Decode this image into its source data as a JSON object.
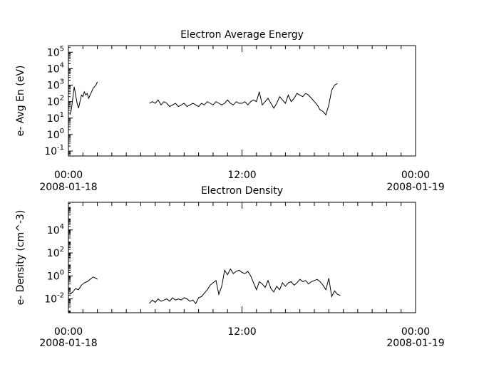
{
  "chart_data": [
    {
      "type": "line",
      "title": "Electron Average Energy",
      "ylabel": "e- Avg En (eV)",
      "xlabel": "",
      "yscale": "log",
      "ylim_log10": [
        -1.3,
        5.4
      ],
      "xlim_hours": [
        0,
        24
      ],
      "xticks": [
        {
          "hours": 0,
          "time": "00:00",
          "date": "2008-01-18"
        },
        {
          "hours": 12,
          "time": "12:00",
          "date": ""
        },
        {
          "hours": 24,
          "time": "00:00",
          "date": "2008-01-19"
        }
      ],
      "yticks": [
        {
          "log10": -1,
          "base": "10",
          "exp": "-1"
        },
        {
          "log10": 0,
          "base": "10",
          "exp": "0"
        },
        {
          "log10": 1,
          "base": "10",
          "exp": "1"
        },
        {
          "log10": 2,
          "base": "10",
          "exp": "2"
        },
        {
          "log10": 3,
          "base": "10",
          "exp": "3"
        },
        {
          "log10": 4,
          "base": "10",
          "exp": "4"
        },
        {
          "log10": 5,
          "base": "10",
          "exp": "5"
        }
      ],
      "grid": false,
      "series": [
        {
          "segments": [
            [
              [
                0.1,
                1.2
              ],
              [
                0.2,
                1.5
              ],
              [
                0.3,
                2.2
              ],
              [
                0.4,
                2.9
              ],
              [
                0.5,
                2.4
              ],
              [
                0.6,
                1.9
              ],
              [
                0.7,
                1.6
              ],
              [
                0.8,
                2.0
              ],
              [
                0.9,
                2.4
              ],
              [
                1.0,
                2.3
              ],
              [
                1.1,
                2.6
              ],
              [
                1.2,
                2.4
              ],
              [
                1.3,
                2.5
              ],
              [
                1.4,
                2.2
              ],
              [
                1.5,
                2.4
              ],
              [
                1.6,
                2.6
              ],
              [
                1.7,
                2.8
              ],
              [
                1.8,
                2.9
              ],
              [
                1.9,
                3.0
              ],
              [
                2.0,
                3.2
              ]
            ],
            [
              [
                5.6,
                1.9
              ],
              [
                5.8,
                2.0
              ],
              [
                6.0,
                1.9
              ],
              [
                6.2,
                2.1
              ],
              [
                6.4,
                1.8
              ],
              [
                6.6,
                2.0
              ],
              [
                6.8,
                1.9
              ],
              [
                7.0,
                1.7
              ],
              [
                7.2,
                1.8
              ],
              [
                7.4,
                1.9
              ],
              [
                7.6,
                1.7
              ],
              [
                7.8,
                1.8
              ],
              [
                8.0,
                1.9
              ],
              [
                8.2,
                1.7
              ],
              [
                8.4,
                1.8
              ],
              [
                8.6,
                1.9
              ],
              [
                8.8,
                1.8
              ],
              [
                9.0,
                1.7
              ],
              [
                9.2,
                1.9
              ],
              [
                9.4,
                1.8
              ],
              [
                9.6,
                2.0
              ],
              [
                9.8,
                1.9
              ],
              [
                10.0,
                1.8
              ],
              [
                10.2,
                2.0
              ],
              [
                10.4,
                1.9
              ],
              [
                10.6,
                1.8
              ],
              [
                10.8,
                1.9
              ],
              [
                11.0,
                2.1
              ],
              [
                11.2,
                1.9
              ],
              [
                11.4,
                1.8
              ],
              [
                11.6,
                2.0
              ],
              [
                11.8,
                1.9
              ],
              [
                12.0,
                1.9
              ],
              [
                12.2,
                2.0
              ],
              [
                12.4,
                1.8
              ],
              [
                12.6,
                2.0
              ],
              [
                12.8,
                2.1
              ],
              [
                13.0,
                2.0
              ],
              [
                13.2,
                2.6
              ],
              [
                13.4,
                1.8
              ],
              [
                13.6,
                2.0
              ],
              [
                13.8,
                2.2
              ],
              [
                14.0,
                1.9
              ],
              [
                14.2,
                1.6
              ],
              [
                14.4,
                1.9
              ],
              [
                14.6,
                2.3
              ],
              [
                14.8,
                2.1
              ],
              [
                15.0,
                1.9
              ],
              [
                15.2,
                2.4
              ],
              [
                15.4,
                2.0
              ],
              [
                15.6,
                2.2
              ],
              [
                15.8,
                2.5
              ],
              [
                16.0,
                2.4
              ],
              [
                16.2,
                2.3
              ],
              [
                16.4,
                2.5
              ],
              [
                16.6,
                2.4
              ],
              [
                16.8,
                2.2
              ],
              [
                17.0,
                2.0
              ],
              [
                17.2,
                1.8
              ],
              [
                17.4,
                1.5
              ],
              [
                17.6,
                1.4
              ],
              [
                17.8,
                1.2
              ],
              [
                18.0,
                1.8
              ],
              [
                18.2,
                2.7
              ],
              [
                18.4,
                3.0
              ],
              [
                18.6,
                3.1
              ]
            ]
          ]
        }
      ]
    },
    {
      "type": "line",
      "title": "Electron Density",
      "ylabel": "e- Density (cm^-3)",
      "xlabel": "",
      "yscale": "log",
      "ylim_log10": [
        -3.2,
        6.4
      ],
      "xlim_hours": [
        0,
        24
      ],
      "xticks": [
        {
          "hours": 0,
          "time": "00:00",
          "date": "2008-01-18"
        },
        {
          "hours": 12,
          "time": "12:00",
          "date": ""
        },
        {
          "hours": 24,
          "time": "00:00",
          "date": "2008-01-19"
        }
      ],
      "yticks": [
        {
          "log10": -2,
          "base": "10",
          "exp": "-2"
        },
        {
          "log10": 0,
          "base": "10",
          "exp": "0"
        },
        {
          "log10": 2,
          "base": "10",
          "exp": "2"
        },
        {
          "log10": 4,
          "base": "10",
          "exp": "4"
        }
      ],
      "grid": false,
      "series": [
        {
          "segments": [
            [
              [
                0.1,
                -1.6
              ],
              [
                0.3,
                -1.4
              ],
              [
                0.5,
                -1.1
              ],
              [
                0.7,
                -1.2
              ],
              [
                0.9,
                -0.8
              ],
              [
                1.1,
                -0.6
              ],
              [
                1.3,
                -0.5
              ],
              [
                1.5,
                -0.3
              ],
              [
                1.7,
                -0.1
              ],
              [
                1.9,
                -0.2
              ],
              [
                2.0,
                -0.3
              ]
            ],
            [
              [
                5.6,
                -2.4
              ],
              [
                5.8,
                -2.1
              ],
              [
                6.0,
                -2.3
              ],
              [
                6.2,
                -2.0
              ],
              [
                6.4,
                -2.2
              ],
              [
                6.6,
                -2.1
              ],
              [
                6.8,
                -2.0
              ],
              [
                7.0,
                -2.2
              ],
              [
                7.2,
                -1.9
              ],
              [
                7.4,
                -2.1
              ],
              [
                7.6,
                -2.0
              ],
              [
                7.8,
                -2.1
              ],
              [
                8.0,
                -1.9
              ],
              [
                8.2,
                -2.0
              ],
              [
                8.4,
                -2.2
              ],
              [
                8.6,
                -2.1
              ],
              [
                8.8,
                -2.4
              ],
              [
                9.0,
                -1.9
              ],
              [
                9.2,
                -1.8
              ],
              [
                9.4,
                -1.5
              ],
              [
                9.6,
                -1.2
              ],
              [
                9.8,
                -0.8
              ],
              [
                10.0,
                -0.6
              ],
              [
                10.2,
                -0.4
              ],
              [
                10.4,
                -1.6
              ],
              [
                10.6,
                -0.9
              ],
              [
                10.8,
                0.5
              ],
              [
                11.0,
                0.1
              ],
              [
                11.2,
                0.6
              ],
              [
                11.4,
                0.2
              ],
              [
                11.6,
                0.4
              ],
              [
                11.8,
                0.5
              ],
              [
                12.0,
                0.3
              ],
              [
                12.2,
                0.2
              ],
              [
                12.4,
                0.4
              ],
              [
                12.6,
                0.0
              ],
              [
                12.8,
                -0.6
              ],
              [
                13.0,
                -1.2
              ],
              [
                13.2,
                -0.5
              ],
              [
                13.4,
                -0.7
              ],
              [
                13.6,
                -1.0
              ],
              [
                13.8,
                -0.4
              ],
              [
                14.0,
                -1.1
              ],
              [
                14.2,
                -1.4
              ],
              [
                14.4,
                -0.9
              ],
              [
                14.6,
                -1.2
              ],
              [
                14.8,
                -0.6
              ],
              [
                15.0,
                -0.9
              ],
              [
                15.2,
                -0.6
              ],
              [
                15.4,
                -0.5
              ],
              [
                15.6,
                -0.8
              ],
              [
                15.8,
                -0.6
              ],
              [
                16.0,
                -0.3
              ],
              [
                16.2,
                -0.5
              ],
              [
                16.4,
                -0.4
              ],
              [
                16.6,
                -0.7
              ],
              [
                16.8,
                -0.5
              ],
              [
                17.0,
                -0.4
              ],
              [
                17.2,
                -0.3
              ],
              [
                17.4,
                -0.5
              ],
              [
                17.6,
                -0.8
              ],
              [
                17.8,
                -1.2
              ],
              [
                18.0,
                -0.2
              ],
              [
                18.2,
                -1.8
              ],
              [
                18.4,
                -1.3
              ],
              [
                18.6,
                -1.6
              ],
              [
                18.8,
                -1.7
              ]
            ]
          ]
        }
      ]
    }
  ]
}
